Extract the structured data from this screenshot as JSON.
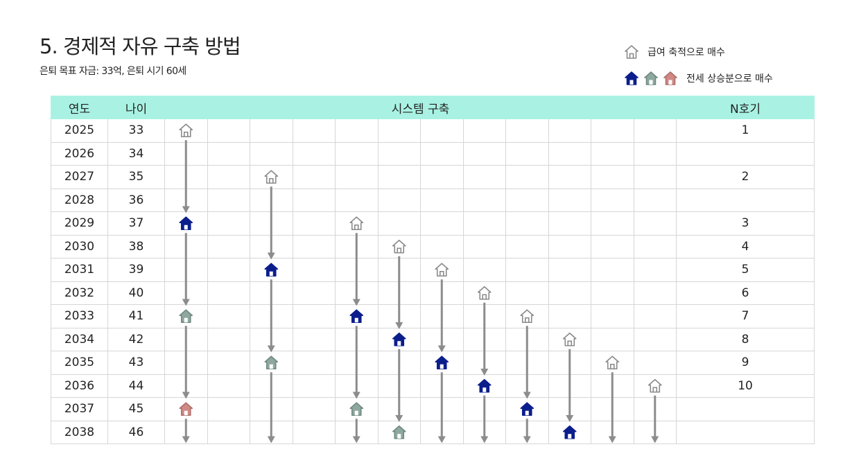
{
  "title": "5. 경제적 자유 구축 방법",
  "subtitle": "은퇴 목표 자금: 33억, 은퇴 시기 60세",
  "legend": {
    "salary_label": "급여 축적으로 매수",
    "jeonse_label": "전세 상승분으로 매수"
  },
  "header": {
    "year": "연도",
    "age": "나이",
    "system": "시스템 구축",
    "n": "N호기"
  },
  "rows": [
    {
      "year": "2025",
      "age": "33",
      "n": "1"
    },
    {
      "year": "2026",
      "age": "34",
      "n": ""
    },
    {
      "year": "2027",
      "age": "35",
      "n": "2"
    },
    {
      "year": "2028",
      "age": "36",
      "n": ""
    },
    {
      "year": "2029",
      "age": "37",
      "n": "3"
    },
    {
      "year": "2030",
      "age": "38",
      "n": "4"
    },
    {
      "year": "2031",
      "age": "39",
      "n": "5"
    },
    {
      "year": "2032",
      "age": "40",
      "n": "6"
    },
    {
      "year": "2033",
      "age": "41",
      "n": "7"
    },
    {
      "year": "2034",
      "age": "42",
      "n": "8"
    },
    {
      "year": "2035",
      "age": "43",
      "n": "9"
    },
    {
      "year": "2036",
      "age": "44",
      "n": "10"
    },
    {
      "year": "2037",
      "age": "45",
      "n": ""
    },
    {
      "year": "2038",
      "age": "46",
      "n": ""
    }
  ],
  "house_colors": {
    "outline": "#8a8a8a",
    "navy": "#0b1e8c",
    "sage": "#8fa89f",
    "pink": "#d08a86"
  },
  "houses": [
    {
      "col": 0,
      "row": 0,
      "type": "outline"
    },
    {
      "col": 0,
      "row": 4,
      "type": "navy"
    },
    {
      "col": 0,
      "row": 8,
      "type": "sage"
    },
    {
      "col": 0,
      "row": 12,
      "type": "pink"
    },
    {
      "col": 2,
      "row": 2,
      "type": "outline"
    },
    {
      "col": 2,
      "row": 6,
      "type": "navy"
    },
    {
      "col": 2,
      "row": 10,
      "type": "sage"
    },
    {
      "col": 4,
      "row": 4,
      "type": "outline"
    },
    {
      "col": 4,
      "row": 8,
      "type": "navy"
    },
    {
      "col": 4,
      "row": 12,
      "type": "sage"
    },
    {
      "col": 5,
      "row": 5,
      "type": "outline"
    },
    {
      "col": 5,
      "row": 9,
      "type": "navy"
    },
    {
      "col": 5,
      "row": 13,
      "type": "sage"
    },
    {
      "col": 6,
      "row": 6,
      "type": "outline"
    },
    {
      "col": 6,
      "row": 10,
      "type": "navy"
    },
    {
      "col": 7,
      "row": 7,
      "type": "outline"
    },
    {
      "col": 7,
      "row": 11,
      "type": "navy"
    },
    {
      "col": 8,
      "row": 8,
      "type": "outline"
    },
    {
      "col": 8,
      "row": 12,
      "type": "navy"
    },
    {
      "col": 9,
      "row": 9,
      "type": "outline"
    },
    {
      "col": 9,
      "row": 13,
      "type": "navy"
    },
    {
      "col": 10,
      "row": 10,
      "type": "outline"
    },
    {
      "col": 11,
      "row": 11,
      "type": "outline"
    }
  ]
}
